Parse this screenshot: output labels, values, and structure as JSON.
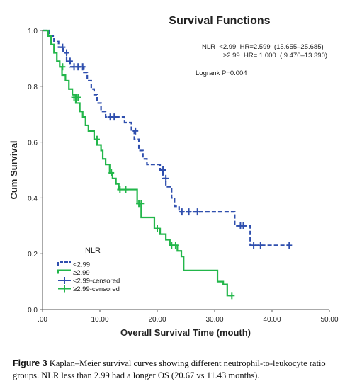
{
  "chart_data": {
    "type": "line",
    "title": "Survival Functions",
    "xlabel": "Overall Survival Time (mouth)",
    "ylabel": "Cum Survival",
    "xlim": [
      0,
      50
    ],
    "ylim": [
      0,
      1.0
    ],
    "x_ticks": [
      ".00",
      "10.00",
      "20.00",
      "30.00",
      "40.00",
      "50.00"
    ],
    "x_tick_values": [
      0,
      10,
      20,
      30,
      40,
      50
    ],
    "y_ticks": [
      "0.0",
      "0.2",
      "0.4",
      "0.6",
      "0.8",
      "1.0"
    ],
    "y_tick_values": [
      0,
      0.2,
      0.4,
      0.6,
      0.8,
      1.0
    ],
    "grid": false,
    "stats_lines": [
      "NLR  <2.99  HR=2.599  (15.655–25.685)",
      "≥2.99  HR= 1.000  ( 9.470–13.390)"
    ],
    "logrank": "Logrank P=0.004",
    "legend": {
      "title": "NLR",
      "position": "bottom-left",
      "items": [
        "<2.99",
        "≥2.99",
        "<2.99-censored",
        "≥2.99-censored"
      ]
    },
    "series": [
      {
        "name": "<2.99",
        "color": "#2f4fae",
        "style": "dashed",
        "steps": [
          [
            0,
            1.0
          ],
          [
            1.2,
            0.98
          ],
          [
            2,
            0.96
          ],
          [
            2.8,
            0.94
          ],
          [
            3.6,
            0.92
          ],
          [
            4.2,
            0.89
          ],
          [
            4.8,
            0.87
          ],
          [
            7.2,
            0.85
          ],
          [
            7.8,
            0.82
          ],
          [
            8.5,
            0.79
          ],
          [
            9,
            0.77
          ],
          [
            9.5,
            0.74
          ],
          [
            10.2,
            0.71
          ],
          [
            11,
            0.69
          ],
          [
            14.3,
            0.67
          ],
          [
            15.5,
            0.64
          ],
          [
            16,
            0.61
          ],
          [
            16.8,
            0.57
          ],
          [
            17.5,
            0.54
          ],
          [
            18.2,
            0.52
          ],
          [
            20.5,
            0.5
          ],
          [
            21,
            0.47
          ],
          [
            21.5,
            0.44
          ],
          [
            22.5,
            0.4
          ],
          [
            23,
            0.37
          ],
          [
            23.8,
            0.35
          ],
          [
            33.5,
            0.3
          ],
          [
            36.2,
            0.23
          ]
        ],
        "end_x": 43,
        "censored": [
          [
            3.5,
            0.94
          ],
          [
            4.2,
            0.92
          ],
          [
            4.8,
            0.89
          ],
          [
            5.5,
            0.87
          ],
          [
            6.2,
            0.87
          ],
          [
            7,
            0.87
          ],
          [
            11.8,
            0.69
          ],
          [
            12.5,
            0.69
          ],
          [
            16.2,
            0.64
          ],
          [
            21,
            0.5
          ],
          [
            21.5,
            0.47
          ],
          [
            24.3,
            0.35
          ],
          [
            25.5,
            0.35
          ],
          [
            27,
            0.35
          ],
          [
            34.5,
            0.3
          ],
          [
            35,
            0.3
          ],
          [
            36.8,
            0.23
          ],
          [
            38,
            0.23
          ],
          [
            43,
            0.23
          ]
        ]
      },
      {
        "name": "≥2.99",
        "color": "#22b64a",
        "style": "solid",
        "steps": [
          [
            0,
            1.0
          ],
          [
            1,
            0.98
          ],
          [
            1.5,
            0.95
          ],
          [
            2,
            0.92
          ],
          [
            2.5,
            0.89
          ],
          [
            3,
            0.87
          ],
          [
            3.4,
            0.84
          ],
          [
            4,
            0.82
          ],
          [
            4.6,
            0.79
          ],
          [
            5.2,
            0.77
          ],
          [
            5.8,
            0.74
          ],
          [
            6.5,
            0.71
          ],
          [
            7,
            0.69
          ],
          [
            7.5,
            0.66
          ],
          [
            8,
            0.64
          ],
          [
            9,
            0.61
          ],
          [
            9.5,
            0.59
          ],
          [
            10.2,
            0.57
          ],
          [
            10.5,
            0.54
          ],
          [
            11,
            0.52
          ],
          [
            11.7,
            0.49
          ],
          [
            12.2,
            0.47
          ],
          [
            12.8,
            0.45
          ],
          [
            13.3,
            0.43
          ],
          [
            16.5,
            0.38
          ],
          [
            17.2,
            0.33
          ],
          [
            19.5,
            0.29
          ],
          [
            20.5,
            0.27
          ],
          [
            21.5,
            0.25
          ],
          [
            22.2,
            0.23
          ],
          [
            23.5,
            0.21
          ],
          [
            24.2,
            0.19
          ],
          [
            24.6,
            0.14
          ],
          [
            29.5,
            0.14
          ],
          [
            30.5,
            0.1
          ],
          [
            31.5,
            0.09
          ],
          [
            32.2,
            0.05
          ]
        ],
        "end_x": 33,
        "censored": [
          [
            3.5,
            0.87
          ],
          [
            5.5,
            0.76
          ],
          [
            6.2,
            0.76
          ],
          [
            9.5,
            0.61
          ],
          [
            12,
            0.49
          ],
          [
            13.5,
            0.43
          ],
          [
            14.5,
            0.43
          ],
          [
            16.8,
            0.38
          ],
          [
            17.2,
            0.38
          ],
          [
            20,
            0.29
          ],
          [
            22.5,
            0.23
          ],
          [
            23.2,
            0.23
          ],
          [
            33,
            0.05
          ]
        ]
      }
    ]
  },
  "caption": {
    "label": "Figure 3",
    "text": "Kaplan–Meier survival curves showing different neutrophil-to-leukocyte ratio groups. NLR less than 2.99 had a longer OS (20.67 vs 11.43 months)."
  }
}
